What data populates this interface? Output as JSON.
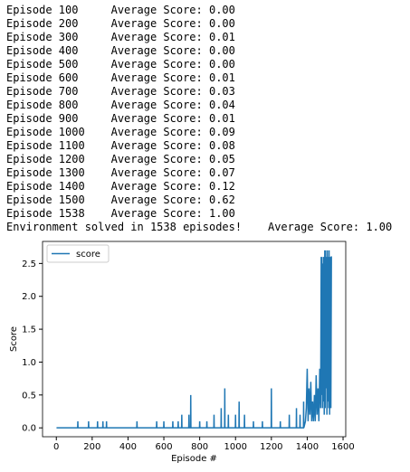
{
  "log": [
    "Episode 100     Average Score: 0.00",
    "Episode 200     Average Score: 0.00",
    "Episode 300     Average Score: 0.01",
    "Episode 400     Average Score: 0.00",
    "Episode 500     Average Score: 0.00",
    "Episode 600     Average Score: 0.01",
    "Episode 700     Average Score: 0.03",
    "Episode 800     Average Score: 0.04",
    "Episode 900     Average Score: 0.01",
    "Episode 1000    Average Score: 0.09",
    "Episode 1100    Average Score: 0.08",
    "Episode 1200    Average Score: 0.05",
    "Episode 1300    Average Score: 0.07",
    "Episode 1400    Average Score: 0.12",
    "Episode 1500    Average Score: 0.62",
    "Episode 1538    Average Score: 1.00",
    "Environment solved in 1538 episodes!    Average Score: 1.00"
  ],
  "chart_data": {
    "type": "line",
    "xlabel": "Episode #",
    "ylabel": "Score",
    "legend": "upper left",
    "x": [
      1,
      119,
      120,
      121,
      179,
      180,
      181,
      229,
      230,
      231,
      259,
      260,
      261,
      279,
      280,
      281,
      449,
      450,
      451,
      559,
      560,
      561,
      599,
      600,
      601,
      649,
      650,
      651,
      679,
      680,
      681,
      699,
      700,
      701,
      739,
      740,
      741,
      749,
      750,
      751,
      799,
      800,
      801,
      839,
      840,
      841,
      879,
      880,
      881,
      919,
      920,
      921,
      939,
      940,
      941,
      959,
      960,
      961,
      999,
      1000,
      1001,
      1019,
      1020,
      1021,
      1049,
      1050,
      1051,
      1099,
      1100,
      1101,
      1149,
      1150,
      1151,
      1199,
      1200,
      1201,
      1249,
      1250,
      1251,
      1299,
      1300,
      1301,
      1339,
      1340,
      1341,
      1359,
      1360,
      1361,
      1379,
      1380,
      1381,
      1390,
      1395,
      1400,
      1405,
      1410,
      1415,
      1420,
      1425,
      1430,
      1435,
      1440,
      1445,
      1450,
      1455,
      1460,
      1465,
      1470,
      1475,
      1478,
      1480,
      1482,
      1485,
      1488,
      1490,
      1492,
      1495,
      1498,
      1500,
      1502,
      1505,
      1508,
      1510,
      1512,
      1515,
      1518,
      1520,
      1522,
      1525,
      1528,
      1530,
      1532,
      1535,
      1538
    ],
    "series": [
      {
        "name": "score",
        "color": "#1f77b4",
        "values": [
          0,
          0,
          0.1,
          0,
          0,
          0.1,
          0,
          0,
          0.1,
          0,
          0,
          0.1,
          0,
          0,
          0.1,
          0,
          0,
          0.1,
          0,
          0,
          0.1,
          0,
          0,
          0.1,
          0,
          0,
          0.1,
          0,
          0,
          0.1,
          0,
          0,
          0.2,
          0,
          0,
          0.2,
          0,
          0,
          0.5,
          0,
          0,
          0.1,
          0,
          0,
          0.1,
          0,
          0,
          0.2,
          0,
          0,
          0.3,
          0,
          0,
          0.6,
          0,
          0,
          0.2,
          0,
          0,
          0.2,
          0,
          0,
          0.4,
          0,
          0,
          0.2,
          0,
          0,
          0.1,
          0,
          0,
          0.1,
          0,
          0,
          0.6,
          0,
          0,
          0.1,
          0,
          0,
          0.2,
          0,
          0,
          0.3,
          0,
          0,
          0.2,
          0,
          0,
          0.4,
          0,
          0.1,
          0.3,
          0.9,
          0.1,
          0.6,
          0.2,
          0.7,
          0.1,
          0.4,
          0.1,
          0.5,
          0.1,
          0.8,
          0.2,
          0.6,
          0.1,
          0.9,
          0.3,
          2.6,
          0.5,
          2.6,
          0.3,
          2.5,
          0.4,
          2.6,
          0.2,
          2.7,
          0.3,
          2.7,
          0.6,
          2.6,
          0.2,
          2.7,
          0.4,
          2.6,
          0.3,
          2.7,
          0.2,
          2.6,
          1.0,
          0.3,
          2.6,
          2.6
        ]
      }
    ],
    "xlim": [
      -77,
      1615
    ],
    "xticks": [
      0,
      200,
      400,
      600,
      800,
      1000,
      1200,
      1400,
      1600
    ],
    "ylim": [
      -0.135,
      2.835
    ],
    "yticks": [
      {
        "value": 0,
        "label": "0.0"
      },
      0.5,
      {
        "value": 1,
        "label": "1.0"
      },
      1.5,
      {
        "value": 2,
        "label": "2.0"
      },
      2.5
    ]
  }
}
